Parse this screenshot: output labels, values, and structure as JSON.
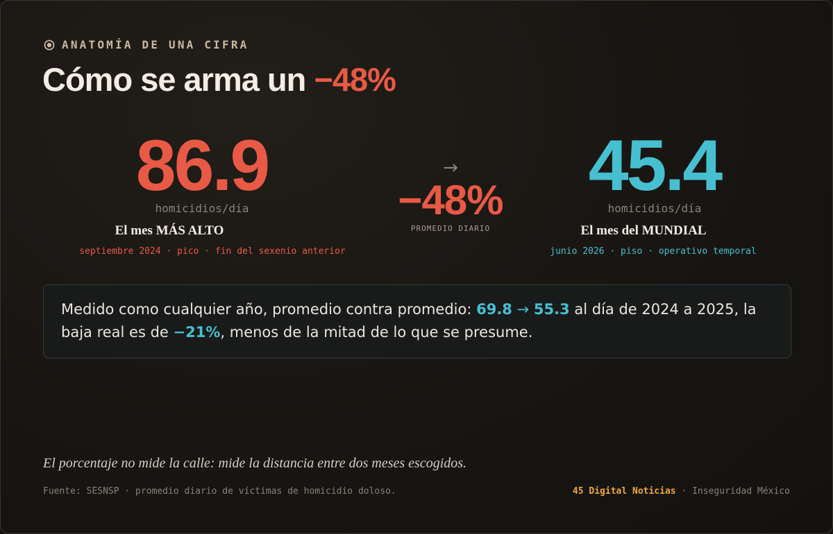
{
  "header": {
    "eyebrow": "ANATOMÍA DE UNA CIFRA",
    "eyebrow_icon": "eye-icon",
    "title_prefix": "Cómo se arma un ",
    "title_accent": "−48%"
  },
  "left_stat": {
    "value": "86.9",
    "unit": "homicidios/día",
    "title": "El mes MÁS ALTO",
    "subtitle": "septiembre 2024 · pico · fin del sexenio anterior"
  },
  "middle": {
    "arrow": "→",
    "change": "−48%",
    "caption": "PROMEDIO DIARIO"
  },
  "right_stat": {
    "value": "45.4",
    "unit": "homicidios/día",
    "title": "El mes del MUNDIAL",
    "subtitle": "junio 2026 · piso · operativo temporal"
  },
  "note": {
    "part1": "Medido como cualquier año, promedio contra promedio: ",
    "value_from": "69.8",
    "arrow": " → ",
    "value_to": "55.3",
    "part2": " al día de 2024 a 2025, la baja real es de ",
    "real_change": "−21%",
    "part3": ", menos de la mitad de lo que se presume."
  },
  "quote": "El porcentaje no mide la calle: mide la distancia entre dos meses escogidos.",
  "footer": {
    "source": "Fuente: SESNSP · promedio diario de víctimas de homicidio doloso.",
    "brand": "45 Digital Noticias",
    "separator": " · ",
    "section": "Inseguridad México"
  },
  "colors": {
    "red": "#e85a45",
    "cyan": "#46c0d0",
    "amber": "#f0a83c"
  }
}
